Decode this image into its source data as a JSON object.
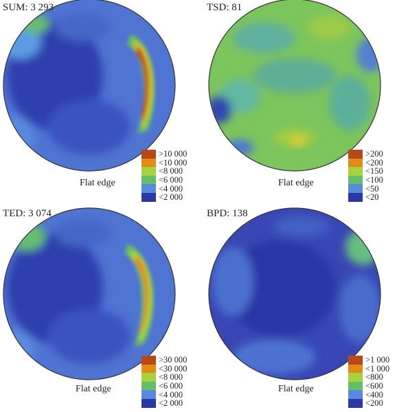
{
  "palette": [
    "#2a37a4",
    "#5a8ae0",
    "#66be66",
    "#a6d23e",
    "#e58a14",
    "#b8471a"
  ],
  "panels": [
    {
      "title": "SUM: 3 293",
      "flat_edge_label": "Flat edge",
      "legend": [
        ">10 000",
        "<10 000",
        "<8 000",
        "<6 000",
        "<4 000",
        "<2 000"
      ]
    },
    {
      "title": "TSD: 81",
      "flat_edge_label": "Flat edge",
      "legend": [
        ">200",
        "<200",
        "<150",
        "<100",
        "<50",
        "<20"
      ]
    },
    {
      "title": "TED: 3 074",
      "flat_edge_label": "Flat edge",
      "legend": [
        ">30 000",
        "<30 000",
        "<8 000",
        "<6 000",
        "<4 000",
        "<2 000"
      ]
    },
    {
      "title": "BPD: 138",
      "flat_edge_label": "Flat edge",
      "legend": [
        ">1 000",
        "<1 000",
        "<800",
        "<600",
        "<400",
        "<200"
      ]
    }
  ]
}
